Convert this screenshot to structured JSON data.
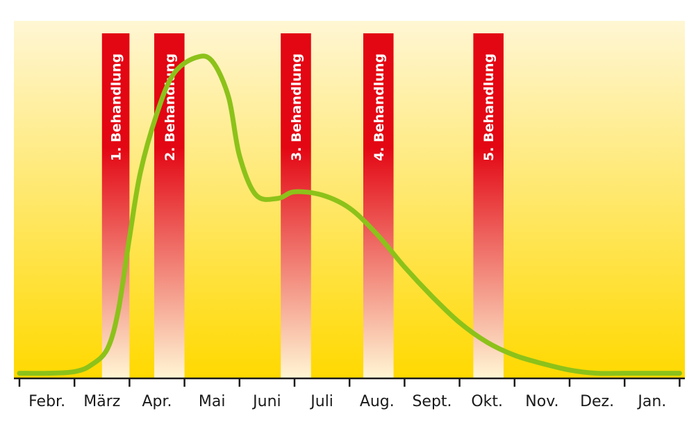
{
  "chart_data": {
    "type": "line",
    "title": "",
    "xlabel": "",
    "ylabel": "",
    "grid": false,
    "legend": "none",
    "months": [
      "Febr.",
      "März",
      "Apr.",
      "Mai",
      "Juni",
      "Juli",
      "Aug.",
      "Sept.",
      "Okt.",
      "Nov.",
      "Dez.",
      "Jan."
    ],
    "treatments": [
      {
        "label": "1. Behandlung",
        "start_month": 1.5,
        "end_month": 2.0
      },
      {
        "label": "2. Behandlung",
        "start_month": 2.45,
        "end_month": 3.0
      },
      {
        "label": "3. Behandlung",
        "start_month": 4.75,
        "end_month": 5.3
      },
      {
        "label": "4. Behandlung",
        "start_month": 6.25,
        "end_month": 6.8
      },
      {
        "label": "5. Behandlung",
        "start_month": 8.25,
        "end_month": 8.8
      }
    ],
    "series": [
      {
        "x": [
          0,
          0.5,
          1.0,
          1.3,
          1.6,
          1.8,
          2.0,
          2.2,
          2.5,
          2.8,
          3.2,
          3.5,
          3.8,
          4.0,
          4.3,
          4.7,
          5.0,
          5.5,
          6.0,
          6.5,
          7.0,
          7.5,
          8.0,
          8.5,
          9.0,
          9.5,
          10.0,
          10.5,
          11.0,
          11.5,
          12.0
        ],
        "y": [
          0.5,
          0.5,
          1,
          3,
          8,
          20,
          42,
          62,
          80,
          92,
          97,
          96,
          85,
          67,
          55,
          54,
          56,
          55,
          51,
          43,
          33,
          24,
          16,
          10,
          6,
          3.5,
          1.5,
          0.5,
          0.5,
          0.5,
          0.5
        ]
      }
    ],
    "colors": {
      "band_top": "#fff6d4",
      "band_bottom": "#ffd900",
      "treatment_top": "#e30613",
      "treatment_bottom": "#fff6d4",
      "curve": "#8cc21a",
      "axis": "#1a1a1a"
    }
  }
}
